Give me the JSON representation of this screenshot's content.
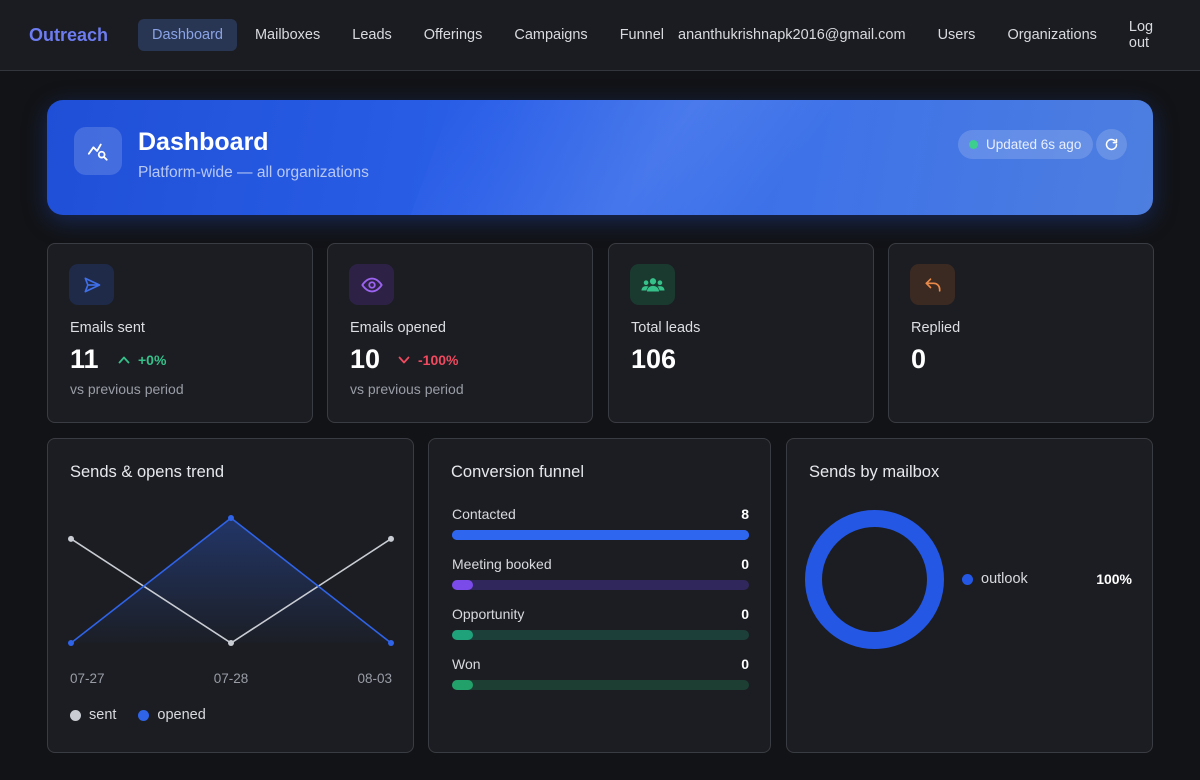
{
  "nav": {
    "brand": "Outreach",
    "links": [
      "Dashboard",
      "Mailboxes",
      "Leads",
      "Offerings",
      "Campaigns",
      "Funnel"
    ],
    "active": "Dashboard",
    "user_email": "ananthukrishnapk2016@gmail.com",
    "right_links": [
      "Users",
      "Organizations",
      "Log out"
    ]
  },
  "hero": {
    "title": "Dashboard",
    "subtitle": "Platform-wide — all organizations",
    "updated": "Updated 6s ago",
    "status_color": "#3ccf8e"
  },
  "stats": [
    {
      "label": "Emails sent",
      "value": "11",
      "delta": "+0%",
      "direction": "up",
      "note": "vs previous period",
      "icon": "send-icon",
      "color": "#3f6fe8"
    },
    {
      "label": "Emails opened",
      "value": "10",
      "delta": "-100%",
      "direction": "down",
      "note": "vs previous period",
      "icon": "eye-icon",
      "color": "#9b63f0"
    },
    {
      "label": "Total leads",
      "value": "106",
      "icon": "users-icon",
      "color": "#36c08a"
    },
    {
      "label": "Replied",
      "value": "0",
      "icon": "reply-icon",
      "color": "#e98a4a"
    }
  ],
  "trend": {
    "title": "Sends & opens trend",
    "legend": [
      "sent",
      "opened"
    ]
  },
  "funnel": {
    "title": "Conversion funnel",
    "stages": [
      {
        "label": "Contacted",
        "count": 8,
        "color": "#2f66f0",
        "track": "#2f66f0"
      },
      {
        "label": "Meeting booked",
        "count": 0,
        "color": "#7a4be8",
        "track": "#30275c"
      },
      {
        "label": "Opportunity",
        "count": 0,
        "color": "#1fa27a",
        "track": "#1d3f3a"
      },
      {
        "label": "Won",
        "count": 0,
        "color": "#22a26a",
        "track": "#1d3f33"
      }
    ]
  },
  "mailbox": {
    "title": "Sends by mailbox"
  },
  "chart_data": [
    {
      "type": "line",
      "x": [
        "07-27",
        "07-28",
        "08-03"
      ],
      "series": [
        {
          "name": "sent",
          "values": [
            5,
            0,
            5
          ],
          "color": "#c9ccd3"
        },
        {
          "name": "opened",
          "values": [
            0,
            6,
            0
          ],
          "color": "#2f63e8"
        }
      ],
      "grid": false,
      "legend": "bottom-left"
    },
    {
      "type": "pie",
      "donut": true,
      "categories": [
        "outlook"
      ],
      "values": [
        100
      ],
      "labels": [
        "100%"
      ],
      "colors": [
        "#2458e4"
      ],
      "legend": "right"
    }
  ]
}
